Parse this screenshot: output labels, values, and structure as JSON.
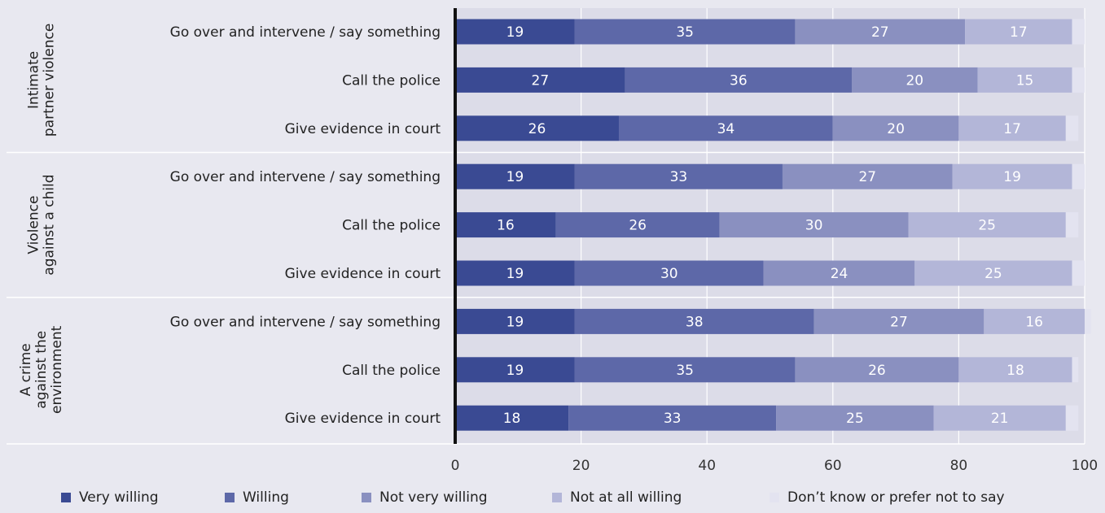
{
  "chart_data": {
    "type": "bar",
    "orientation": "horizontal",
    "stacked": true,
    "groups": [
      {
        "label_lines": [
          "Intimate",
          "partner violence"
        ],
        "rows": [
          {
            "label": "Go over and intervene / say something",
            "values": [
              19,
              35,
              27,
              17,
              2
            ]
          },
          {
            "label": "Call the police",
            "values": [
              27,
              36,
              20,
              15,
              2
            ]
          },
          {
            "label": "Give evidence in court",
            "values": [
              26,
              34,
              20,
              17,
              2
            ]
          }
        ]
      },
      {
        "label_lines": [
          "Violence",
          "against a child"
        ],
        "rows": [
          {
            "label": "Go over and intervene / say something",
            "values": [
              19,
              33,
              27,
              19,
              2
            ]
          },
          {
            "label": "Call the police",
            "values": [
              16,
              26,
              30,
              25,
              2
            ]
          },
          {
            "label": "Give evidence in court",
            "values": [
              19,
              30,
              24,
              25,
              2
            ]
          }
        ]
      },
      {
        "label_lines": [
          "A crime",
          "against the",
          "environment"
        ],
        "rows": [
          {
            "label": "Go over and intervene / say something",
            "values": [
              19,
              38,
              27,
              16,
              1
            ]
          },
          {
            "label": "Call the police",
            "values": [
              19,
              35,
              26,
              18,
              1
            ]
          },
          {
            "label": "Give evidence in court",
            "values": [
              18,
              33,
              25,
              21,
              2
            ]
          }
        ]
      }
    ],
    "series": [
      {
        "name": "Very willing",
        "color": "#3a4a93"
      },
      {
        "name": "Willing",
        "color": "#5d68a8"
      },
      {
        "name": "Not very willing",
        "color": "#8a90c0"
      },
      {
        "name": "Not at all willing",
        "color": "#b3b6d8"
      },
      {
        "name": "Don’t know or prefer not to say",
        "color": "#e3e3f0"
      }
    ],
    "xlim": [
      0,
      100
    ],
    "xticks": [
      0,
      20,
      40,
      60,
      80,
      100
    ],
    "grid": true,
    "legend_position": "bottom",
    "show_values_for_series": [
      0,
      1,
      2,
      3
    ],
    "title": "",
    "xlabel": "",
    "ylabel": ""
  }
}
